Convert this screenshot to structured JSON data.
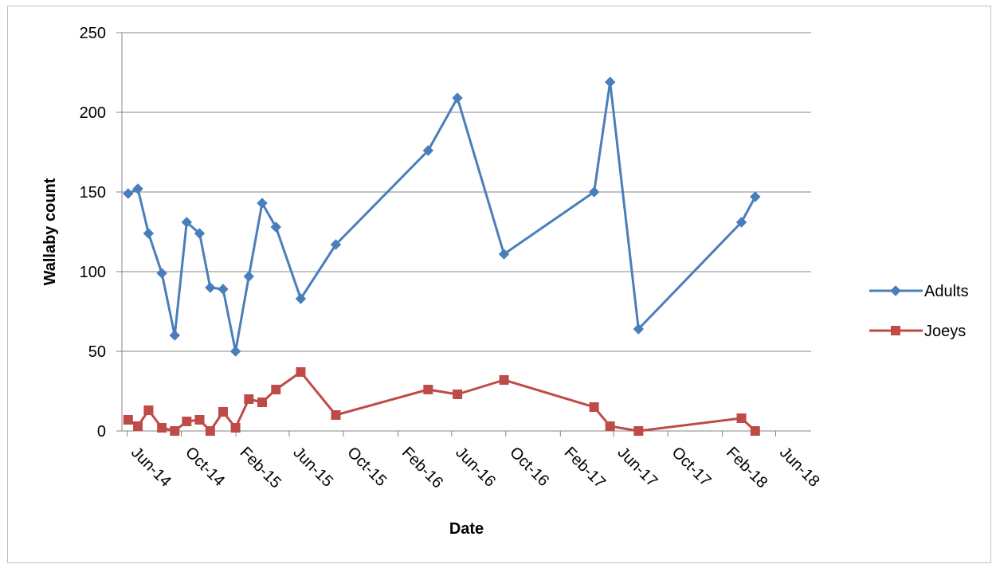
{
  "chart_data": {
    "type": "line",
    "title": "",
    "xlabel": "Date",
    "ylabel": "Wallaby count",
    "ylim": [
      0,
      250
    ],
    "yticks": [
      "0",
      "50",
      "100",
      "150",
      "200",
      "250"
    ],
    "xlim": [
      "2014-05-20",
      "2018-08-20"
    ],
    "xtick_labels": [
      "Jun-14",
      "Oct-14",
      "Feb-15",
      "Jun-15",
      "Oct-15",
      "Feb-16",
      "Jun-16",
      "Oct-16",
      "Feb-17",
      "Jun-17",
      "Oct-17",
      "Feb-18",
      "Jun-18"
    ],
    "xtick_dates": [
      "2014-06-01",
      "2014-10-01",
      "2015-02-01",
      "2015-06-01",
      "2015-10-01",
      "2016-02-01",
      "2016-06-01",
      "2016-10-01",
      "2017-02-01",
      "2017-06-01",
      "2017-10-01",
      "2018-02-01",
      "2018-06-01"
    ],
    "grid": "horizontal",
    "legend": "right",
    "x": [
      "2014-06-03",
      "2014-06-25",
      "2014-07-19",
      "2014-08-18",
      "2014-09-16",
      "2014-10-13",
      "2014-11-11",
      "2014-12-05",
      "2015-01-03",
      "2015-01-31",
      "2015-03-02",
      "2015-04-01",
      "2015-05-02",
      "2015-06-27",
      "2015-09-14",
      "2016-04-09",
      "2016-06-14",
      "2016-09-27",
      "2017-04-18",
      "2017-05-24",
      "2017-07-27",
      "2018-03-16",
      "2018-04-16",
      "2018-07-31"
    ],
    "series": [
      {
        "name": "Adults",
        "color": "#4a7ebb",
        "marker": "diamond",
        "values": [
          149,
          152,
          124,
          99,
          60,
          131,
          124,
          90,
          89,
          50,
          97,
          143,
          128,
          83,
          117,
          176,
          209,
          111,
          150,
          219,
          64,
          131,
          147,
          null
        ]
      },
      {
        "name": "Joeys",
        "color": "#be4b48",
        "marker": "square",
        "values": [
          7,
          3,
          13,
          2,
          0,
          6,
          7,
          0,
          12,
          2,
          20,
          18,
          26,
          37,
          10,
          26,
          23,
          32,
          15,
          3,
          0,
          8,
          0,
          null
        ]
      }
    ]
  }
}
